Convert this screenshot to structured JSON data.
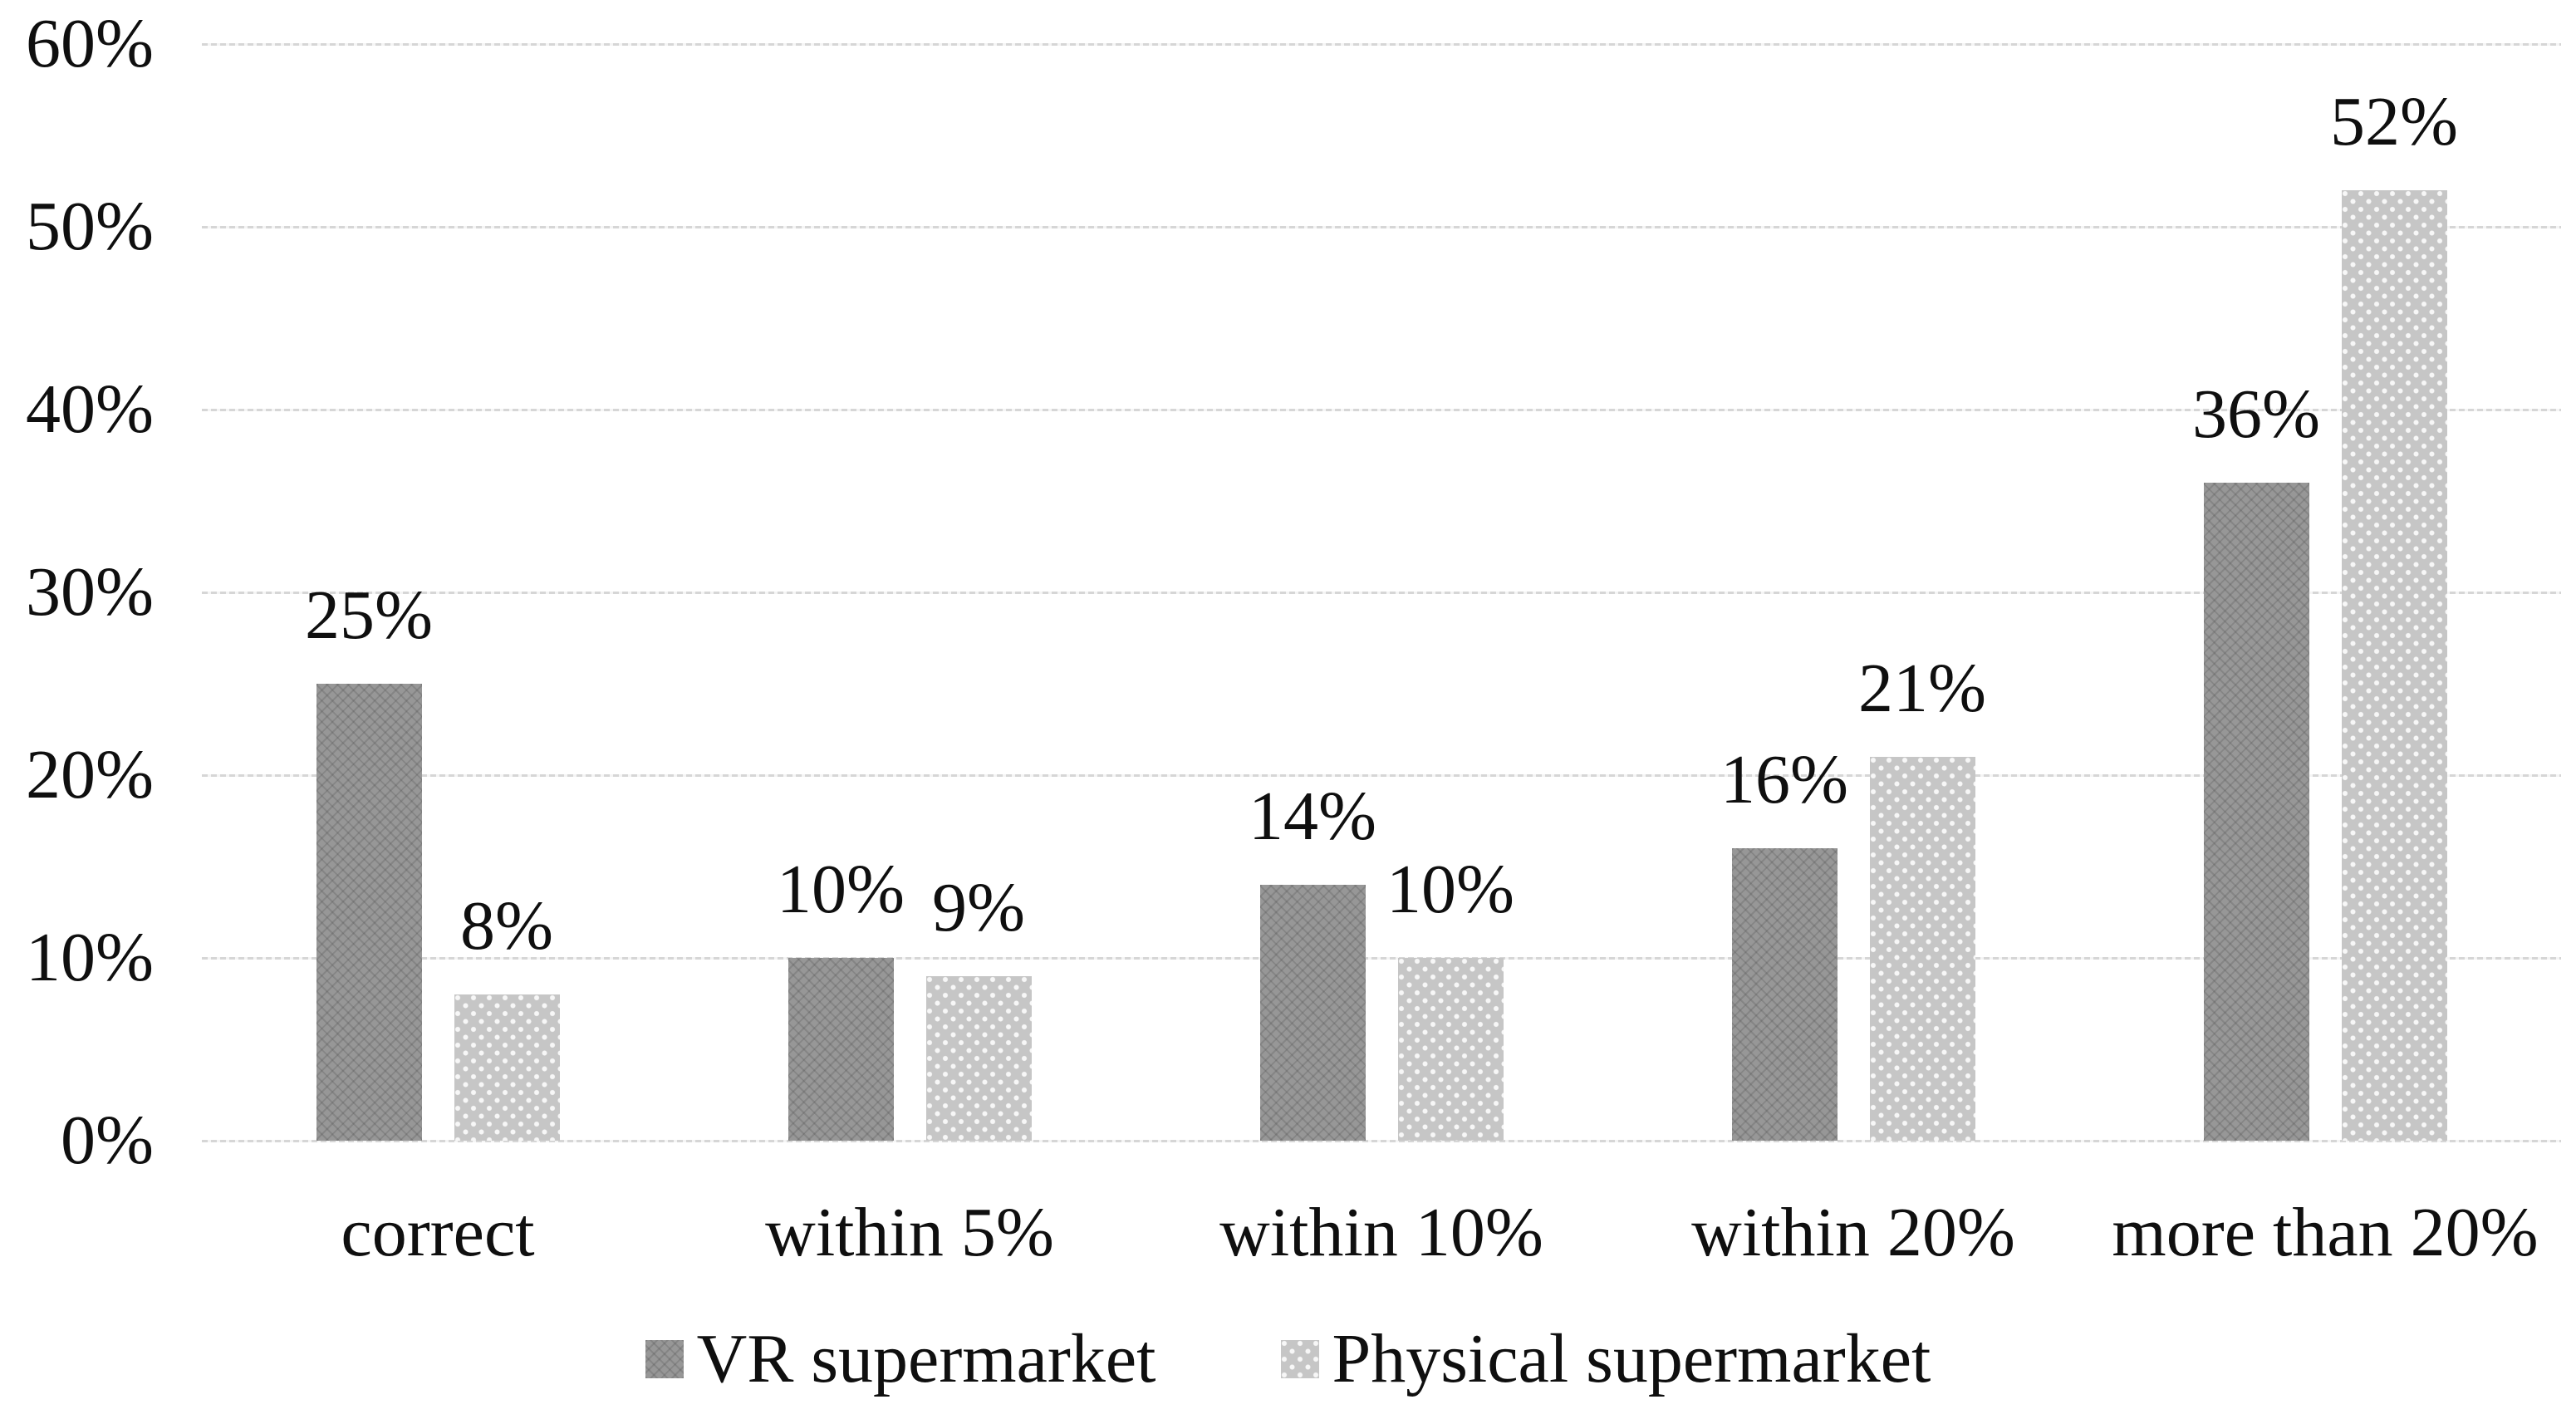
{
  "chart_data": {
    "type": "bar",
    "title": "",
    "xlabel": "",
    "ylabel": "",
    "categories": [
      "correct",
      "within 5%",
      "within 10%",
      "within 20%",
      "more than 20%"
    ],
    "series": [
      {
        "name": "VR supermarket",
        "values": [
          25,
          10,
          14,
          16,
          36
        ],
        "color": "#979797",
        "pattern": "diagonal-crosshatch"
      },
      {
        "name": "Physical supermarket",
        "values": [
          8,
          9,
          10,
          21,
          52
        ],
        "color": "#c6c6c6",
        "pattern": "white-dots"
      }
    ],
    "data_labels": {
      "VR supermarket": [
        "25%",
        "10%",
        "14%",
        "16%",
        "36%"
      ],
      "Physical supermarket": [
        "8%",
        "9%",
        "10%",
        "21%",
        "52%"
      ]
    },
    "value_suffix": "%",
    "y_axis": {
      "min": 0,
      "max": 60,
      "step": 10,
      "tick_labels": [
        "0%",
        "10%",
        "20%",
        "30%",
        "40%",
        "50%",
        "60%"
      ]
    },
    "grid": true,
    "legend_position": "bottom",
    "colors": {
      "gridline": "#d6d6d6",
      "text": "#0f0f0f",
      "background": "#ffffff"
    }
  }
}
